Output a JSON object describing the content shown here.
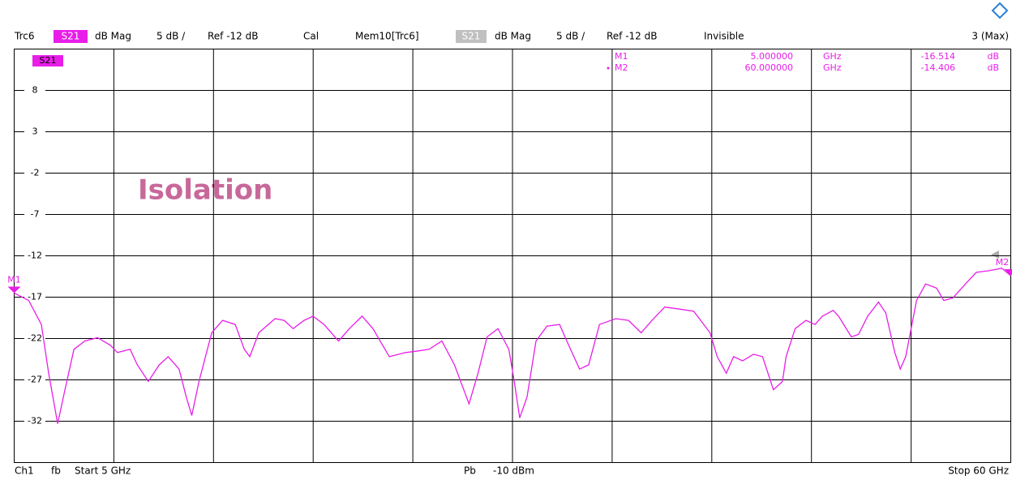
{
  "header": {
    "trace": "Trc6",
    "param": "S21",
    "format": "dB Mag",
    "scale": "5 dB /",
    "ref": "Ref -12 dB",
    "cal": "Cal",
    "memory": "Mem10[Trc6]",
    "memory_param": "S21",
    "memory_format": "dB Mag",
    "memory_scale": "5 dB /",
    "memory_ref": "Ref -12 dB",
    "memory_state": "Invisible",
    "window": "3 (Max)"
  },
  "footer": {
    "channel": "Ch1",
    "mode": "fb",
    "start": "Start 5 GHz",
    "power_label": "Pb",
    "power": "-10 dBm",
    "stop": "Stop 60 GHz"
  },
  "chart_data": {
    "type": "line",
    "annotation": "Isolation",
    "trace_label": "S21",
    "xlim": [
      5,
      60
    ],
    "ylim": [
      -37,
      13
    ],
    "yticks": [
      8,
      3,
      -2,
      -7,
      -12,
      -17,
      -22,
      -27,
      -32
    ],
    "grid": true,
    "series": [
      {
        "name": "S21",
        "color": "#e81ee8",
        "x": [
          5.0,
          5.8,
          6.5,
          6.9,
          7.4,
          7.8,
          8.3,
          8.9,
          9.6,
          10.3,
          10.7,
          11.4,
          11.8,
          12.4,
          13.0,
          13.5,
          14.1,
          14.5,
          14.8,
          15.2,
          15.9,
          16.5,
          17.2,
          17.7,
          18.0,
          18.5,
          19.4,
          19.9,
          20.4,
          21.0,
          21.5,
          22.1,
          22.9,
          23.5,
          24.2,
          24.8,
          25.7,
          26.6,
          27.3,
          27.9,
          28.6,
          29.3,
          30.1,
          30.6,
          31.1,
          31.7,
          32.3,
          32.6,
          32.9,
          33.3,
          33.8,
          34.4,
          35.1,
          35.5,
          36.2,
          36.7,
          37.3,
          38.2,
          38.9,
          39.6,
          40.2,
          40.9,
          41.6,
          42.5,
          43.4,
          43.8,
          44.3,
          44.7,
          45.2,
          45.8,
          46.3,
          46.9,
          47.4,
          47.6,
          48.1,
          48.7,
          49.2,
          49.6,
          50.2,
          50.5,
          51.2,
          51.6,
          52.1,
          52.7,
          53.1,
          53.6,
          53.9,
          54.2,
          54.8,
          55.3,
          55.9,
          56.3,
          56.8,
          57.5,
          58.1,
          58.8,
          59.5,
          60.0
        ],
        "values": [
          -16.5,
          -17.4,
          -20.3,
          -26.2,
          -32.3,
          -28.2,
          -23.3,
          -22.3,
          -21.9,
          -22.8,
          -23.7,
          -23.3,
          -25.2,
          -27.2,
          -25.2,
          -24.2,
          -25.7,
          -29.1,
          -31.3,
          -27.2,
          -21.3,
          -19.8,
          -20.3,
          -23.3,
          -24.2,
          -21.3,
          -19.6,
          -19.8,
          -20.8,
          -19.8,
          -19.3,
          -20.3,
          -22.3,
          -20.8,
          -19.3,
          -20.8,
          -24.2,
          -23.7,
          -23.5,
          -23.3,
          -22.3,
          -25.2,
          -29.9,
          -26.2,
          -21.8,
          -20.8,
          -23.3,
          -27.2,
          -31.6,
          -29.1,
          -22.3,
          -20.5,
          -20.3,
          -22.3,
          -25.7,
          -25.2,
          -20.3,
          -19.6,
          -19.8,
          -21.3,
          -19.8,
          -18.2,
          -18.4,
          -18.7,
          -21.3,
          -24.2,
          -26.2,
          -24.2,
          -24.7,
          -23.9,
          -24.2,
          -28.2,
          -27.2,
          -24.2,
          -20.8,
          -19.8,
          -20.3,
          -19.3,
          -18.6,
          -19.3,
          -21.8,
          -21.5,
          -19.3,
          -17.6,
          -18.9,
          -23.7,
          -25.7,
          -24.2,
          -17.4,
          -15.4,
          -15.9,
          -17.4,
          -17.1,
          -15.4,
          -14.0,
          -13.8,
          -13.5,
          -14.4
        ]
      }
    ],
    "markers": [
      {
        "name": "M1",
        "x": 5,
        "x_label": "5.000000",
        "x_unit": "GHz",
        "value": -16.514,
        "value_label": "-16.514",
        "unit": "dB"
      },
      {
        "name": "M2",
        "x": 60,
        "x_label": "60.000000",
        "x_unit": "GHz",
        "value": -14.406,
        "value_label": "-14.406",
        "unit": "dB"
      }
    ]
  }
}
